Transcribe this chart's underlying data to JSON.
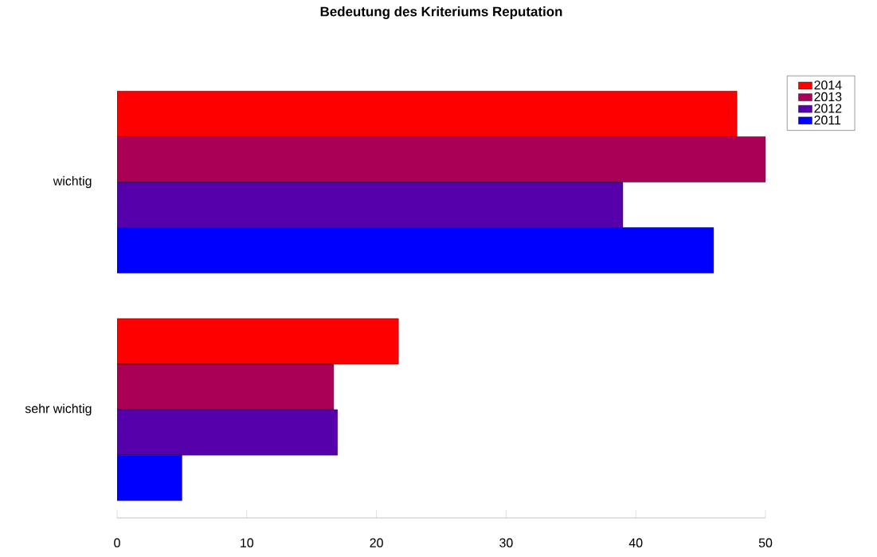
{
  "chart_data": {
    "type": "bar",
    "orientation": "horizontal",
    "title": "Bedeutung des Kriteriums Reputation",
    "categories": [
      "wichtig",
      "sehr wichtig"
    ],
    "series": [
      {
        "name": "2014",
        "color": "#ff0000",
        "values": [
          47.8,
          21.7
        ]
      },
      {
        "name": "2013",
        "color": "#aa0055",
        "values": [
          50.0,
          16.7
        ]
      },
      {
        "name": "2012",
        "color": "#5500aa",
        "values": [
          39.0,
          17.0
        ]
      },
      {
        "name": "2011",
        "color": "#0000ff",
        "values": [
          46.0,
          5.0
        ]
      }
    ],
    "xlim": [
      0,
      50
    ],
    "xticks": [
      0,
      10,
      20,
      30,
      40,
      50
    ],
    "grid": false,
    "legend": "top right"
  }
}
